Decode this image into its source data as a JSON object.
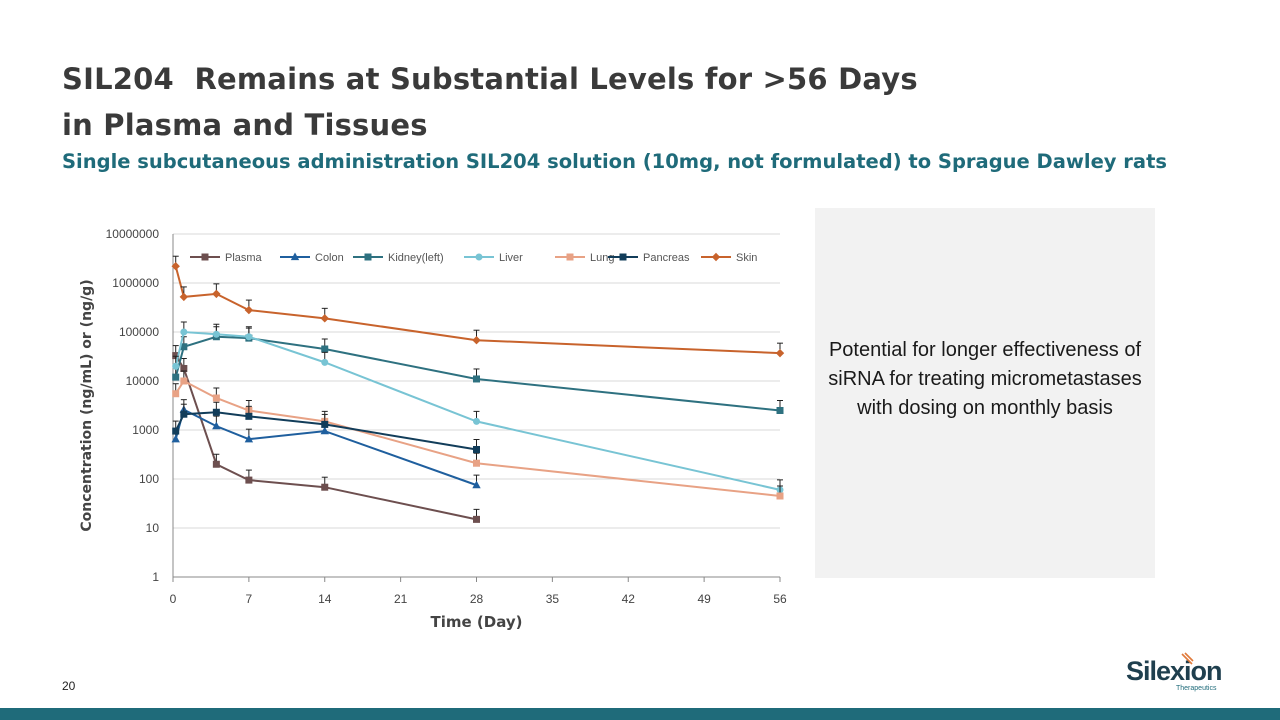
{
  "slide": {
    "title_line1": "SIL204  Remains at Substantial Levels for >56 Days",
    "title_line2": "in Plasma and Tissues",
    "subtitle": "Single subcutaneous administration SIL204 solution (10mg, not formulated) to Sprague Dawley rats",
    "callout": "Potential for longer effectiveness of siRNA for treating micrometastases with dosing on monthly basis",
    "page_number": "20"
  },
  "logo": {
    "name": "Silexion",
    "tagline": "Therapeutics"
  },
  "colors": {
    "accent": "#1f6b7a",
    "title": "#3a3a3a"
  },
  "chart_data": {
    "type": "line",
    "xlabel": "Time (Day)",
    "ylabel": "Concentration (ng/mL) or (ng/g)",
    "yscale": "log",
    "xlim": [
      0,
      56
    ],
    "ylim": [
      1,
      10000000
    ],
    "x_ticks": [
      "0",
      "7",
      "14",
      "21",
      "28",
      "35",
      "42",
      "49",
      "56"
    ],
    "y_ticks": [
      "1",
      "10",
      "100",
      "1000",
      "10000",
      "100000",
      "1000000",
      "10000000"
    ],
    "legend_position": "top",
    "grid": "horizontal",
    "error_bars": true,
    "series": [
      {
        "name": "Plasma",
        "color": "#6d4f4f",
        "marker": "square",
        "x": [
          0.25,
          1,
          4,
          7,
          14,
          28
        ],
        "y": [
          33000,
          18000,
          200,
          95,
          68,
          15
        ]
      },
      {
        "name": "Colon",
        "color": "#1f5f9e",
        "marker": "triangle",
        "x": [
          0.25,
          1,
          4,
          7,
          14,
          28
        ],
        "y": [
          650,
          2600,
          1200,
          650,
          950,
          75
        ]
      },
      {
        "name": "Kidney(left)",
        "color": "#2e7180",
        "marker": "square",
        "x": [
          0.25,
          1,
          4,
          7,
          14,
          28,
          56
        ],
        "y": [
          12000,
          50000,
          80000,
          75000,
          45000,
          11000,
          2500
        ]
      },
      {
        "name": "Liver",
        "color": "#78c4d4",
        "marker": "circle",
        "x": [
          0.25,
          1,
          4,
          7,
          14,
          28,
          56
        ],
        "y": [
          20000,
          100000,
          90000,
          80000,
          24000,
          1500,
          60
        ]
      },
      {
        "name": "Lung",
        "color": "#e8a285",
        "marker": "square",
        "x": [
          0.25,
          1,
          4,
          7,
          14,
          28,
          56
        ],
        "y": [
          5500,
          10000,
          4500,
          2500,
          1500,
          210,
          45
        ]
      },
      {
        "name": "Pancreas",
        "color": "#123d5a",
        "marker": "square",
        "x": [
          0.25,
          1,
          4,
          7,
          14,
          28
        ],
        "y": [
          950,
          2100,
          2300,
          1900,
          1300,
          400
        ]
      },
      {
        "name": "Skin",
        "color": "#c8632c",
        "marker": "diamond",
        "x": [
          0.25,
          1,
          4,
          7,
          14,
          28,
          56
        ],
        "y": [
          2200000,
          520000,
          600000,
          280000,
          190000,
          68000,
          37000
        ]
      }
    ]
  }
}
